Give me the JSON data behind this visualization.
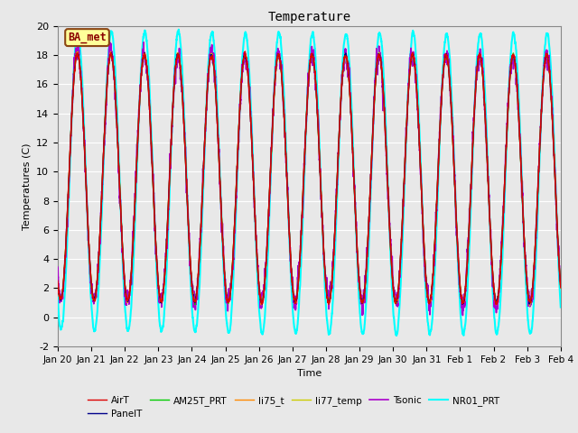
{
  "title": "Temperature",
  "xlabel": "Time",
  "ylabel": "Temperatures (C)",
  "ylim": [
    -2,
    20
  ],
  "fig_bg_color": "#e8e8e8",
  "plot_bg_color": "#e8e8e8",
  "annotation_text": "BA_met",
  "annotation_box_color": "#ffff99",
  "annotation_text_color": "#8b0000",
  "annotation_border_color": "#8b4513",
  "series_order": [
    "NR01_PRT",
    "Tsonic",
    "AM25T_PRT",
    "li77_temp",
    "li75_t",
    "PanelT",
    "AirT"
  ],
  "series": {
    "AirT": {
      "color": "#dd0000",
      "lw": 1.0,
      "zorder": 7
    },
    "PanelT": {
      "color": "#00008b",
      "lw": 1.0,
      "zorder": 6
    },
    "AM25T_PRT": {
      "color": "#00cc00",
      "lw": 1.0,
      "zorder": 5
    },
    "li75_t": {
      "color": "#ff8800",
      "lw": 1.0,
      "zorder": 5
    },
    "li77_temp": {
      "color": "#cccc00",
      "lw": 1.0,
      "zorder": 5
    },
    "Tsonic": {
      "color": "#aa00cc",
      "lw": 1.2,
      "zorder": 4
    },
    "NR01_PRT": {
      "color": "#00ffff",
      "lw": 1.5,
      "zorder": 3
    }
  },
  "legend_order": [
    "AirT",
    "PanelT",
    "AM25T_PRT",
    "li75_t",
    "li77_temp",
    "Tsonic",
    "NR01_PRT"
  ],
  "xtick_labels": [
    "Jan 20",
    "Jan 21",
    "Jan 22",
    "Jan 23",
    "Jan 24",
    "Jan 25",
    "Jan 26",
    "Jan 27",
    "Jan 28",
    "Jan 29",
    "Jan 30",
    "Jan 31",
    "Feb 1",
    "Feb 2",
    "Feb 3",
    "Feb 4"
  ],
  "xtick_positions": [
    0,
    1,
    2,
    3,
    4,
    5,
    6,
    7,
    8,
    9,
    10,
    11,
    12,
    13,
    14,
    15
  ],
  "ytick_labels": [
    "-2",
    "0",
    "2",
    "4",
    "6",
    "8",
    "10",
    "12",
    "14",
    "16",
    "18",
    "20"
  ],
  "ytick_positions": [
    -2,
    0,
    2,
    4,
    6,
    8,
    10,
    12,
    14,
    16,
    18,
    20
  ],
  "grid_color": "#ffffff",
  "n_points": 4320
}
